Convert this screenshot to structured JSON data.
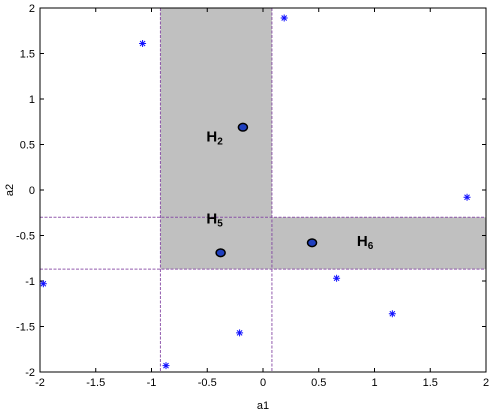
{
  "chart_data": {
    "type": "scatter",
    "xlabel": "a1",
    "ylabel": "a2",
    "xlim": [
      -2,
      2
    ],
    "ylim": [
      -2,
      2
    ],
    "xticks": [
      -2,
      -1.5,
      -1,
      -0.5,
      0,
      0.5,
      1,
      1.5,
      2
    ],
    "yticks": [
      -2,
      -1.5,
      -1,
      -0.5,
      0,
      0.5,
      1,
      1.5,
      2
    ],
    "xtick_labels": [
      "-2",
      "-1.5",
      "-1",
      "-0.5",
      "0",
      "0.5",
      "1",
      "1.5",
      "2"
    ],
    "ytick_labels": [
      "-2",
      "-1.5",
      "-1",
      "-0.5",
      "0",
      "0.5",
      "1",
      "1.5",
      "2"
    ],
    "grid": false,
    "regions": [
      {
        "label": "H",
        "sub": "2",
        "x": [
          -0.92,
          0.08
        ],
        "y": [
          -0.3,
          2.0
        ],
        "label_at": [
          -0.4,
          0.6
        ]
      },
      {
        "label": "H",
        "sub": "5",
        "x": [
          -0.92,
          0.08
        ],
        "y": [
          -0.87,
          -0.3
        ],
        "label_at": [
          -0.4,
          -0.3
        ]
      },
      {
        "label": "H",
        "sub": "6",
        "x": [
          0.08,
          2.0
        ],
        "y": [
          -0.87,
          -0.3
        ],
        "label_at": [
          0.95,
          -0.55
        ]
      }
    ],
    "region_color": "#c0c0c0",
    "dashed_lines": {
      "vertical": [
        -0.92,
        0.08
      ],
      "horizontal": [
        -0.3,
        -0.87
      ],
      "color": "#7f3f9f"
    },
    "series": [
      {
        "marker": "asterisk",
        "color": "#1010ff",
        "points": [
          [
            -1.08,
            1.61
          ],
          [
            0.19,
            1.89
          ],
          [
            1.83,
            -0.08
          ],
          [
            0.66,
            -0.97
          ],
          [
            1.16,
            -1.36
          ],
          [
            -0.21,
            -1.57
          ],
          [
            -0.87,
            -1.93
          ],
          [
            -1.97,
            -1.03
          ]
        ]
      },
      {
        "marker": "circle",
        "color": "#1f3fbf",
        "edge": "#000000",
        "points": [
          [
            -0.18,
            0.69
          ],
          [
            -0.38,
            -0.69
          ],
          [
            0.44,
            -0.58
          ]
        ]
      }
    ]
  }
}
